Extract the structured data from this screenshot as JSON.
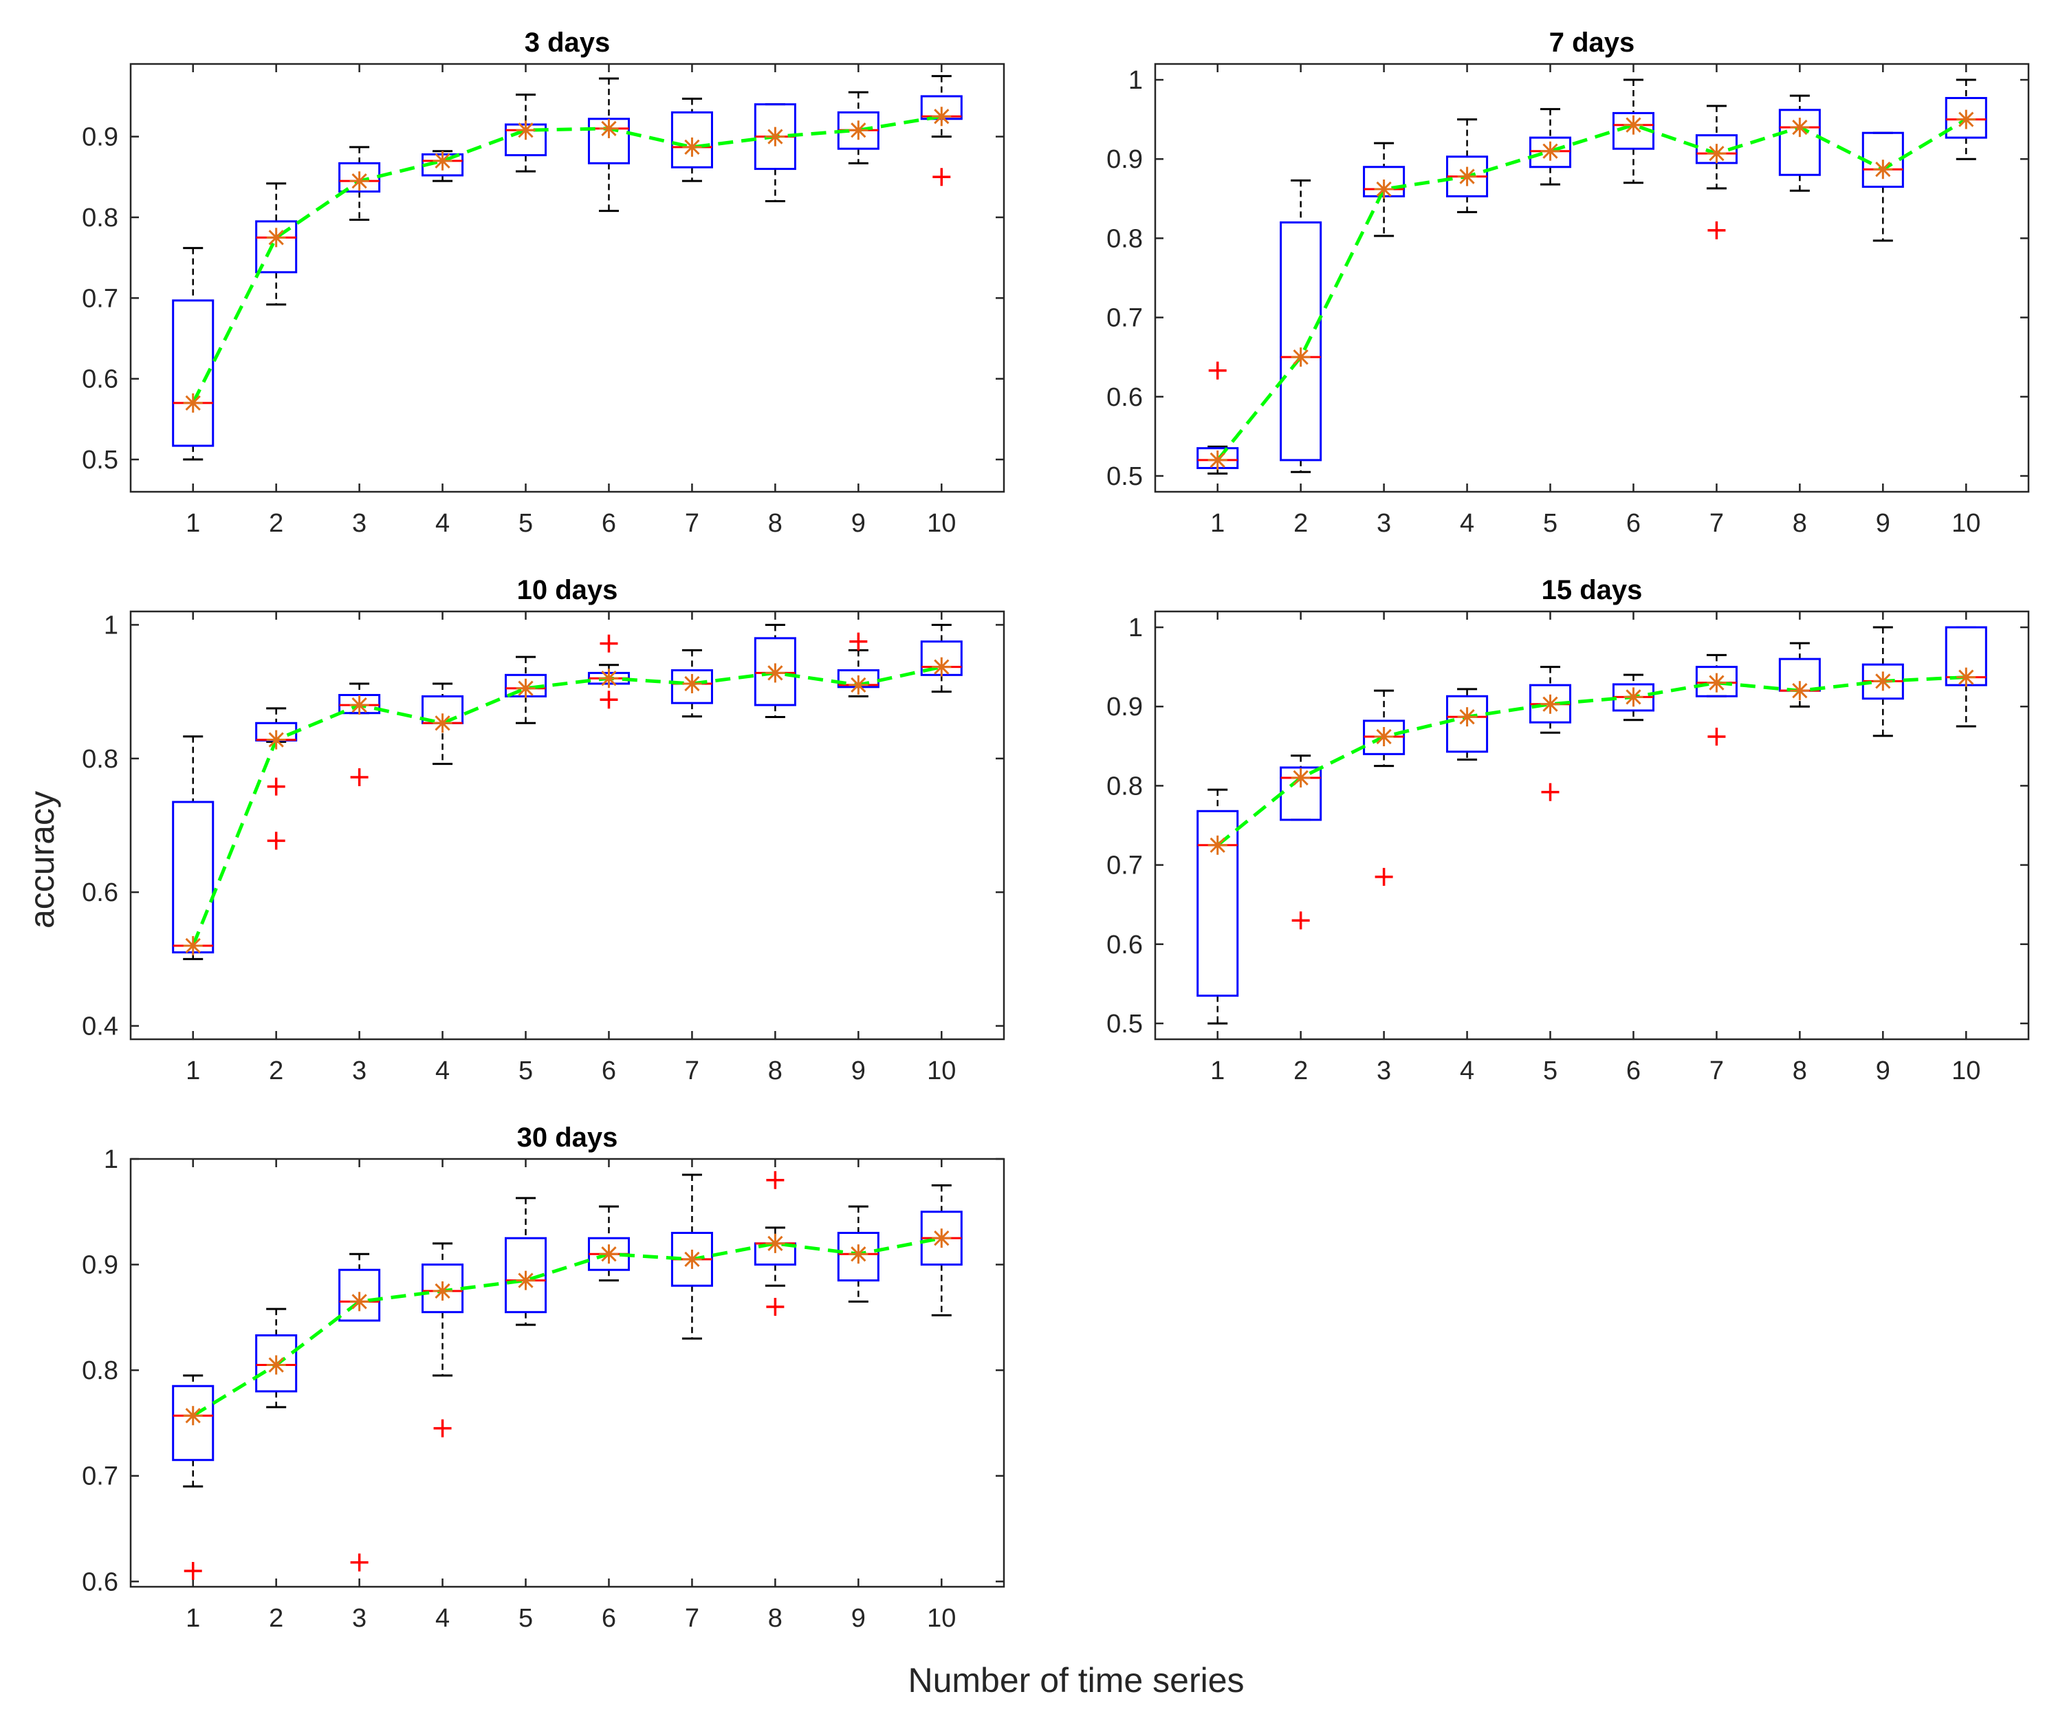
{
  "figure": {
    "ylabel": "accuracy",
    "xlabel": "Number of time series"
  },
  "colors": {
    "box": "#0000ff",
    "whisker": "#000000",
    "median": "#ff0000",
    "outlier": "#ff0000",
    "mean_marker": "#e0701a",
    "mean_line": "#00ff00",
    "axis": "#262626"
  },
  "chart_data": [
    {
      "type": "box",
      "title": "3 days",
      "categories": [
        "1",
        "2",
        "3",
        "4",
        "5",
        "6",
        "7",
        "8",
        "9",
        "10"
      ],
      "ylim": [
        0.46,
        0.99
      ],
      "yticks": [
        0.5,
        0.6,
        0.7,
        0.8,
        0.9
      ],
      "ytick_labels": [
        "0.5",
        "0.6",
        "0.7",
        "0.8",
        "0.9"
      ],
      "boxes": [
        {
          "min": 0.5,
          "q1": 0.517,
          "median": 0.57,
          "q3": 0.697,
          "max": 0.762,
          "outliers": []
        },
        {
          "min": 0.692,
          "q1": 0.732,
          "median": 0.775,
          "q3": 0.795,
          "max": 0.842,
          "outliers": []
        },
        {
          "min": 0.797,
          "q1": 0.832,
          "median": 0.845,
          "q3": 0.867,
          "max": 0.887,
          "outliers": []
        },
        {
          "min": 0.845,
          "q1": 0.852,
          "median": 0.87,
          "q3": 0.878,
          "max": 0.882,
          "outliers": []
        },
        {
          "min": 0.857,
          "q1": 0.877,
          "median": 0.908,
          "q3": 0.915,
          "max": 0.952,
          "outliers": []
        },
        {
          "min": 0.808,
          "q1": 0.867,
          "median": 0.91,
          "q3": 0.922,
          "max": 0.972,
          "outliers": []
        },
        {
          "min": 0.845,
          "q1": 0.862,
          "median": 0.887,
          "q3": 0.93,
          "max": 0.947,
          "outliers": []
        },
        {
          "min": 0.82,
          "q1": 0.86,
          "median": 0.9,
          "q3": 0.94,
          "max": 0.94,
          "outliers": []
        },
        {
          "min": 0.867,
          "q1": 0.885,
          "median": 0.908,
          "q3": 0.93,
          "max": 0.955,
          "outliers": []
        },
        {
          "min": 0.9,
          "q1": 0.922,
          "median": 0.925,
          "q3": 0.95,
          "max": 0.975,
          "outliers": [
            0.85
          ]
        }
      ],
      "means": [
        0.57,
        0.775,
        0.845,
        0.87,
        0.908,
        0.91,
        0.887,
        0.9,
        0.908,
        0.925
      ]
    },
    {
      "type": "box",
      "title": "7 days",
      "categories": [
        "1",
        "2",
        "3",
        "4",
        "5",
        "6",
        "7",
        "8",
        "9",
        "10"
      ],
      "ylim": [
        0.48,
        1.02
      ],
      "yticks": [
        0.5,
        0.6,
        0.7,
        0.8,
        0.9,
        1.0
      ],
      "ytick_labels": [
        "0.5",
        "0.6",
        "0.7",
        "0.8",
        "0.9",
        "1"
      ],
      "boxes": [
        {
          "min": 0.503,
          "q1": 0.51,
          "median": 0.52,
          "q3": 0.535,
          "max": 0.537,
          "outliers": [
            0.633
          ]
        },
        {
          "min": 0.505,
          "q1": 0.52,
          "median": 0.65,
          "q3": 0.82,
          "max": 0.873,
          "outliers": []
        },
        {
          "min": 0.803,
          "q1": 0.853,
          "median": 0.862,
          "q3": 0.89,
          "max": 0.92,
          "outliers": []
        },
        {
          "min": 0.833,
          "q1": 0.853,
          "median": 0.878,
          "q3": 0.903,
          "max": 0.95,
          "outliers": []
        },
        {
          "min": 0.868,
          "q1": 0.89,
          "median": 0.91,
          "q3": 0.927,
          "max": 0.963,
          "outliers": []
        },
        {
          "min": 0.87,
          "q1": 0.913,
          "median": 0.943,
          "q3": 0.958,
          "max": 1.0,
          "outliers": []
        },
        {
          "min": 0.863,
          "q1": 0.895,
          "median": 0.907,
          "q3": 0.93,
          "max": 0.967,
          "outliers": [
            0.81
          ]
        },
        {
          "min": 0.86,
          "q1": 0.88,
          "median": 0.94,
          "q3": 0.962,
          "max": 0.98,
          "outliers": []
        },
        {
          "min": 0.797,
          "q1": 0.865,
          "median": 0.887,
          "q3": 0.933,
          "max": 0.933,
          "outliers": []
        },
        {
          "min": 0.9,
          "q1": 0.927,
          "median": 0.95,
          "q3": 0.977,
          "max": 1.0,
          "outliers": []
        }
      ],
      "means": [
        0.52,
        0.65,
        0.862,
        0.878,
        0.91,
        0.943,
        0.907,
        0.94,
        0.887,
        0.95
      ]
    },
    {
      "type": "box",
      "title": "10 days",
      "categories": [
        "1",
        "2",
        "3",
        "4",
        "5",
        "6",
        "7",
        "8",
        "9",
        "10"
      ],
      "ylim": [
        0.38,
        1.02
      ],
      "yticks": [
        0.4,
        0.6,
        0.8,
        1.0
      ],
      "ytick_labels": [
        "0.4",
        "0.6",
        "0.8",
        "1"
      ],
      "boxes": [
        {
          "min": 0.5,
          "q1": 0.51,
          "median": 0.52,
          "q3": 0.735,
          "max": 0.833,
          "outliers": []
        },
        {
          "min": 0.825,
          "q1": 0.827,
          "median": 0.828,
          "q3": 0.853,
          "max": 0.875,
          "outliers": [
            0.758,
            0.677
          ]
        },
        {
          "min": 0.868,
          "q1": 0.868,
          "median": 0.88,
          "q3": 0.895,
          "max": 0.912,
          "outliers": [
            0.772
          ]
        },
        {
          "min": 0.792,
          "q1": 0.853,
          "median": 0.853,
          "q3": 0.893,
          "max": 0.912,
          "outliers": []
        },
        {
          "min": 0.853,
          "q1": 0.893,
          "median": 0.905,
          "q3": 0.925,
          "max": 0.952,
          "outliers": []
        },
        {
          "min": 0.912,
          "q1": 0.912,
          "median": 0.92,
          "q3": 0.928,
          "max": 0.94,
          "outliers": [
            0.972,
            0.888
          ]
        },
        {
          "min": 0.863,
          "q1": 0.883,
          "median": 0.912,
          "q3": 0.932,
          "max": 0.962,
          "outliers": []
        },
        {
          "min": 0.862,
          "q1": 0.88,
          "median": 0.928,
          "q3": 0.98,
          "max": 1.0,
          "outliers": []
        },
        {
          "min": 0.893,
          "q1": 0.907,
          "median": 0.91,
          "q3": 0.932,
          "max": 0.962,
          "outliers": [
            0.975
          ]
        },
        {
          "min": 0.9,
          "q1": 0.925,
          "median": 0.937,
          "q3": 0.975,
          "max": 1.0,
          "outliers": []
        }
      ],
      "means": [
        0.52,
        0.828,
        0.88,
        0.853,
        0.905,
        0.92,
        0.912,
        0.928,
        0.91,
        0.937
      ]
    },
    {
      "type": "box",
      "title": "15 days",
      "categories": [
        "1",
        "2",
        "3",
        "4",
        "5",
        "6",
        "7",
        "8",
        "9",
        "10"
      ],
      "ylim": [
        0.48,
        1.02
      ],
      "yticks": [
        0.5,
        0.6,
        0.7,
        0.8,
        0.9,
        1.0
      ],
      "ytick_labels": [
        "0.5",
        "0.6",
        "0.7",
        "0.8",
        "0.9",
        "1"
      ],
      "boxes": [
        {
          "min": 0.5,
          "q1": 0.535,
          "median": 0.725,
          "q3": 0.768,
          "max": 0.795,
          "outliers": []
        },
        {
          "min": 0.757,
          "q1": 0.757,
          "median": 0.81,
          "q3": 0.823,
          "max": 0.838,
          "outliers": [
            0.63
          ]
        },
        {
          "min": 0.825,
          "q1": 0.84,
          "median": 0.862,
          "q3": 0.882,
          "max": 0.92,
          "outliers": [
            0.685
          ]
        },
        {
          "min": 0.833,
          "q1": 0.843,
          "median": 0.887,
          "q3": 0.913,
          "max": 0.922,
          "outliers": []
        },
        {
          "min": 0.867,
          "q1": 0.88,
          "median": 0.903,
          "q3": 0.927,
          "max": 0.95,
          "outliers": [
            0.792
          ]
        },
        {
          "min": 0.883,
          "q1": 0.895,
          "median": 0.912,
          "q3": 0.928,
          "max": 0.94,
          "outliers": []
        },
        {
          "min": 0.913,
          "q1": 0.913,
          "median": 0.93,
          "q3": 0.95,
          "max": 0.965,
          "outliers": [
            0.862
          ]
        },
        {
          "min": 0.9,
          "q1": 0.92,
          "median": 0.92,
          "q3": 0.96,
          "max": 0.98,
          "outliers": []
        },
        {
          "min": 0.863,
          "q1": 0.91,
          "median": 0.932,
          "q3": 0.953,
          "max": 1.0,
          "outliers": []
        },
        {
          "min": 0.875,
          "q1": 0.927,
          "median": 0.937,
          "q3": 1.0,
          "max": 1.0,
          "outliers": []
        }
      ],
      "means": [
        0.725,
        0.81,
        0.862,
        0.887,
        0.903,
        0.912,
        0.93,
        0.92,
        0.932,
        0.937
      ]
    },
    {
      "type": "box",
      "title": "30 days",
      "categories": [
        "1",
        "2",
        "3",
        "4",
        "5",
        "6",
        "7",
        "8",
        "9",
        "10"
      ],
      "ylim": [
        0.595,
        1.0
      ],
      "yticks": [
        0.6,
        0.7,
        0.8,
        0.9,
        1.0
      ],
      "ytick_labels": [
        "0.6",
        "0.7",
        "0.8",
        "0.9",
        "1"
      ],
      "boxes": [
        {
          "min": 0.69,
          "q1": 0.715,
          "median": 0.757,
          "q3": 0.785,
          "max": 0.795,
          "outliers": [
            0.61
          ]
        },
        {
          "min": 0.765,
          "q1": 0.78,
          "median": 0.805,
          "q3": 0.833,
          "max": 0.858,
          "outliers": []
        },
        {
          "min": 0.847,
          "q1": 0.847,
          "median": 0.865,
          "q3": 0.895,
          "max": 0.91,
          "outliers": [
            0.618
          ]
        },
        {
          "min": 0.795,
          "q1": 0.855,
          "median": 0.875,
          "q3": 0.9,
          "max": 0.92,
          "outliers": [
            0.745
          ]
        },
        {
          "min": 0.843,
          "q1": 0.855,
          "median": 0.885,
          "q3": 0.925,
          "max": 0.963,
          "outliers": []
        },
        {
          "min": 0.885,
          "q1": 0.895,
          "median": 0.91,
          "q3": 0.925,
          "max": 0.955,
          "outliers": []
        },
        {
          "min": 0.83,
          "q1": 0.88,
          "median": 0.905,
          "q3": 0.93,
          "max": 0.985,
          "outliers": []
        },
        {
          "min": 0.88,
          "q1": 0.9,
          "median": 0.92,
          "q3": 0.92,
          "max": 0.935,
          "outliers": [
            0.98,
            0.86
          ]
        },
        {
          "min": 0.865,
          "q1": 0.885,
          "median": 0.91,
          "q3": 0.93,
          "max": 0.955,
          "outliers": []
        },
        {
          "min": 0.852,
          "q1": 0.9,
          "median": 0.925,
          "q3": 0.95,
          "max": 0.975,
          "outliers": []
        }
      ],
      "means": [
        0.757,
        0.805,
        0.865,
        0.875,
        0.885,
        0.91,
        0.905,
        0.92,
        0.91,
        0.925
      ]
    }
  ]
}
